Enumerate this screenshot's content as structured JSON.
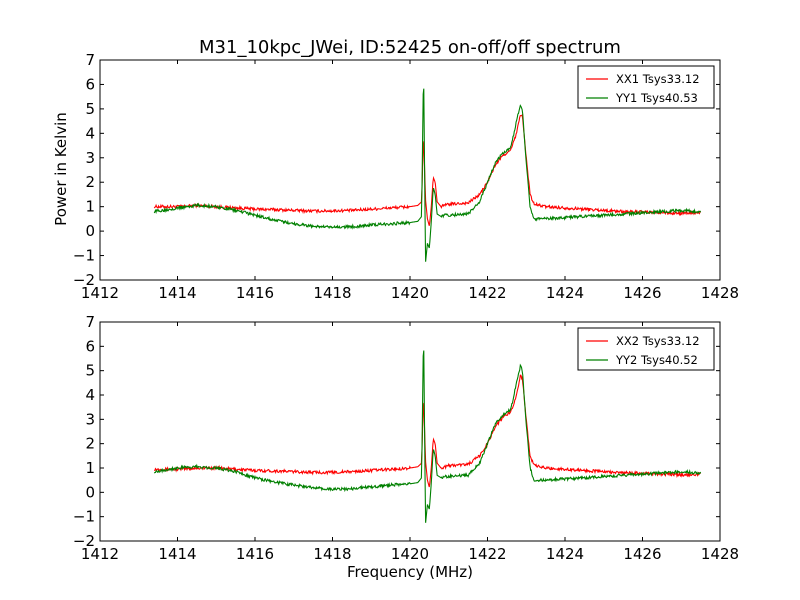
{
  "figure": {
    "title": "M31_10kpc_JWei, ID:52425 on-off/off spectrum",
    "xlabel": "Frequency (MHz)",
    "ylabel": "Power in Kelvin"
  },
  "colors": {
    "xx": "#ff0000",
    "yy": "#008000"
  },
  "chart_data": [
    {
      "type": "line",
      "xlim": [
        1412,
        1428
      ],
      "ylim": [
        -2,
        7
      ],
      "xticks": [
        "1412",
        "1414",
        "1416",
        "1418",
        "1420",
        "1422",
        "1424",
        "1426",
        "1428"
      ],
      "yticks": [
        "−2",
        "−1",
        "0",
        "1",
        "2",
        "3",
        "4",
        "5",
        "6",
        "7"
      ],
      "ylabel": "Power in Kelvin",
      "xlabel": "",
      "legend_position": "top-right",
      "series": [
        {
          "name": "XX1 Tsys33.12",
          "color": "#ff0000",
          "x": [
            1413.4,
            1414,
            1414.5,
            1415,
            1415.5,
            1416,
            1416.5,
            1417,
            1417.5,
            1418,
            1418.5,
            1419,
            1419.5,
            1420,
            1420.2,
            1420.3,
            1420.35,
            1420.4,
            1420.45,
            1420.5,
            1420.55,
            1420.6,
            1420.65,
            1420.7,
            1420.8,
            1420.9,
            1421,
            1421.5,
            1421.8,
            1422,
            1422.2,
            1422.4,
            1422.6,
            1422.75,
            1422.85,
            1422.9,
            1423,
            1423.1,
            1423.2,
            1423.5,
            1424,
            1424.5,
            1425,
            1425.5,
            1426,
            1426.5,
            1427,
            1427.5
          ],
          "y": [
            1.0,
            1.0,
            1.05,
            1.0,
            0.95,
            0.9,
            0.88,
            0.85,
            0.82,
            0.83,
            0.85,
            0.9,
            0.95,
            1.0,
            1.05,
            1.2,
            4.0,
            1.3,
            0.5,
            0.2,
            1.0,
            2.2,
            2.0,
            1.2,
            1.0,
            1.05,
            1.1,
            1.15,
            1.5,
            2.0,
            2.7,
            3.1,
            3.3,
            4.0,
            4.8,
            4.7,
            3.0,
            1.5,
            1.1,
            1.0,
            0.95,
            0.9,
            0.85,
            0.8,
            0.78,
            0.75,
            0.72,
            0.75
          ]
        },
        {
          "name": "YY1 Tsys40.53",
          "color": "#008000",
          "x": [
            1413.4,
            1414,
            1414.5,
            1415,
            1415.5,
            1416,
            1416.5,
            1417,
            1417.5,
            1418,
            1418.5,
            1419,
            1419.5,
            1420,
            1420.2,
            1420.3,
            1420.35,
            1420.4,
            1420.45,
            1420.5,
            1420.55,
            1420.6,
            1420.65,
            1420.7,
            1420.8,
            1420.9,
            1421,
            1421.5,
            1421.8,
            1422,
            1422.2,
            1422.4,
            1422.6,
            1422.75,
            1422.85,
            1422.9,
            1423,
            1423.1,
            1423.2,
            1423.5,
            1424,
            1424.5,
            1425,
            1425.5,
            1426,
            1426.5,
            1427,
            1427.5
          ],
          "y": [
            0.8,
            0.95,
            1.05,
            1.0,
            0.85,
            0.65,
            0.45,
            0.3,
            0.2,
            0.15,
            0.18,
            0.25,
            0.3,
            0.35,
            0.4,
            0.6,
            6.8,
            -1.3,
            -0.5,
            -0.7,
            0.4,
            1.8,
            1.5,
            0.7,
            0.6,
            0.65,
            0.65,
            0.7,
            1.2,
            2.0,
            2.8,
            3.2,
            3.4,
            4.5,
            5.2,
            5.0,
            2.8,
            1.0,
            0.5,
            0.5,
            0.55,
            0.6,
            0.65,
            0.7,
            0.75,
            0.8,
            0.85,
            0.8
          ]
        }
      ]
    },
    {
      "type": "line",
      "xlim": [
        1412,
        1428
      ],
      "ylim": [
        -2,
        7
      ],
      "xticks": [
        "1412",
        "1414",
        "1416",
        "1418",
        "1420",
        "1422",
        "1424",
        "1426",
        "1428"
      ],
      "yticks": [
        "−2",
        "−1",
        "0",
        "1",
        "2",
        "3",
        "4",
        "5",
        "6",
        "7"
      ],
      "ylabel": "",
      "xlabel": "Frequency (MHz)",
      "legend_position": "top-right",
      "series": [
        {
          "name": "XX2 Tsys33.12",
          "color": "#ff0000",
          "x": [
            1413.4,
            1414,
            1414.5,
            1415,
            1415.5,
            1416,
            1416.5,
            1417,
            1417.5,
            1418,
            1418.5,
            1419,
            1419.5,
            1420,
            1420.2,
            1420.3,
            1420.35,
            1420.4,
            1420.45,
            1420.5,
            1420.55,
            1420.6,
            1420.65,
            1420.7,
            1420.8,
            1420.9,
            1421,
            1421.5,
            1421.8,
            1422,
            1422.2,
            1422.4,
            1422.6,
            1422.75,
            1422.85,
            1422.9,
            1423,
            1423.1,
            1423.2,
            1423.5,
            1424,
            1424.5,
            1425,
            1425.5,
            1426,
            1426.5,
            1427,
            1427.5
          ],
          "y": [
            0.95,
            0.95,
            1.0,
            1.0,
            0.95,
            0.9,
            0.88,
            0.85,
            0.82,
            0.82,
            0.85,
            0.9,
            0.95,
            1.0,
            1.05,
            1.2,
            4.0,
            1.3,
            0.5,
            0.2,
            1.0,
            2.2,
            2.0,
            1.2,
            1.0,
            1.05,
            1.1,
            1.15,
            1.5,
            2.0,
            2.7,
            3.1,
            3.3,
            4.0,
            4.8,
            4.7,
            3.0,
            1.5,
            1.1,
            1.0,
            0.95,
            0.9,
            0.85,
            0.8,
            0.78,
            0.75,
            0.72,
            0.75
          ]
        },
        {
          "name": "YY2 Tsys40.52",
          "color": "#008000",
          "x": [
            1413.4,
            1414,
            1414.5,
            1415,
            1415.5,
            1416,
            1416.5,
            1417,
            1417.5,
            1418,
            1418.5,
            1419,
            1419.5,
            1420,
            1420.2,
            1420.3,
            1420.35,
            1420.4,
            1420.45,
            1420.5,
            1420.55,
            1420.6,
            1420.65,
            1420.7,
            1420.8,
            1420.9,
            1421,
            1421.5,
            1421.8,
            1422,
            1422.2,
            1422.4,
            1422.6,
            1422.75,
            1422.85,
            1422.9,
            1423,
            1423.1,
            1423.2,
            1423.5,
            1424,
            1424.5,
            1425,
            1425.5,
            1426,
            1426.5,
            1427,
            1427.5
          ],
          "y": [
            0.85,
            1.0,
            1.05,
            1.0,
            0.85,
            0.6,
            0.42,
            0.3,
            0.18,
            0.12,
            0.15,
            0.22,
            0.3,
            0.35,
            0.4,
            0.6,
            6.8,
            -1.3,
            -0.5,
            -0.7,
            0.4,
            1.8,
            1.5,
            0.7,
            0.6,
            0.65,
            0.65,
            0.7,
            1.2,
            2.0,
            2.8,
            3.2,
            3.4,
            4.5,
            5.2,
            5.0,
            2.8,
            1.0,
            0.5,
            0.5,
            0.55,
            0.6,
            0.65,
            0.7,
            0.75,
            0.8,
            0.85,
            0.8
          ]
        }
      ]
    }
  ]
}
